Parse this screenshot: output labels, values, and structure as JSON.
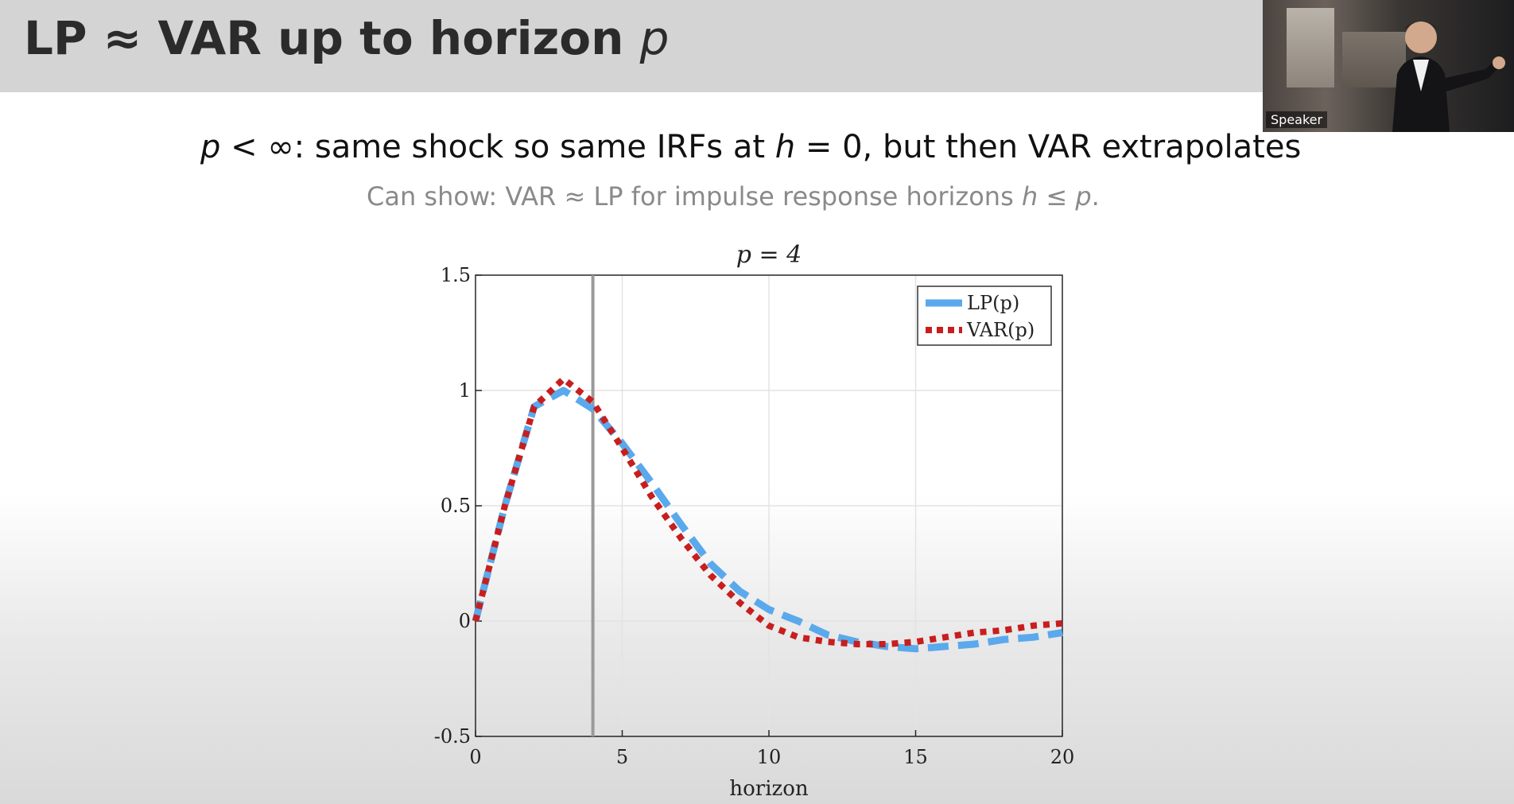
{
  "slide": {
    "title_main": "LP ≈ VAR up to horizon ",
    "title_var": "p",
    "subtitle": {
      "p": "p",
      "lt_inf": " < ∞: same shock so same IRFs at ",
      "h": "h",
      "rest": " = 0, but then VAR extrapolates"
    },
    "note": {
      "start": "Can show: VAR ≈ LP for impulse response horizons ",
      "h": "h",
      "le": " ≤ ",
      "p": "p",
      "end": "."
    }
  },
  "video": {
    "speaker_label": "Speaker"
  },
  "chart_data": {
    "type": "line",
    "title": "p = 4",
    "xlabel": "horizon",
    "ylabel": "",
    "xlim": [
      0,
      20
    ],
    "ylim": [
      -0.5,
      1.5
    ],
    "xticks": [
      0,
      5,
      10,
      15,
      20
    ],
    "yticks": [
      -0.5,
      0,
      0.5,
      1,
      1.5
    ],
    "xtick_labels": [
      "0",
      "5",
      "10",
      "15",
      "20"
    ],
    "ytick_labels": [
      "-0.5",
      "0",
      "0.5",
      "1",
      "1.5"
    ],
    "grid": true,
    "legend_position": "top-right",
    "vertical_line_x": 4,
    "series": [
      {
        "name": "LP(p)",
        "style": "dashed",
        "color": "#5aa9ec",
        "x": [
          0,
          1,
          2,
          3,
          4,
          5,
          6,
          7,
          8,
          9,
          10,
          11,
          12,
          13,
          14,
          15,
          16,
          17,
          18,
          19,
          20
        ],
        "values": [
          0.0,
          0.5,
          0.93,
          1.0,
          0.92,
          0.77,
          0.6,
          0.42,
          0.25,
          0.13,
          0.05,
          0.0,
          -0.06,
          -0.09,
          -0.11,
          -0.12,
          -0.11,
          -0.1,
          -0.08,
          -0.07,
          -0.05
        ]
      },
      {
        "name": "VAR(p)",
        "style": "dotted",
        "color": "#c81e1e",
        "x": [
          0,
          1,
          2,
          3,
          4,
          5,
          6,
          7,
          8,
          9,
          10,
          11,
          12,
          13,
          14,
          15,
          16,
          17,
          18,
          19,
          20
        ],
        "values": [
          0.0,
          0.5,
          0.93,
          1.05,
          0.95,
          0.75,
          0.54,
          0.36,
          0.2,
          0.08,
          -0.02,
          -0.07,
          -0.09,
          -0.1,
          -0.1,
          -0.09,
          -0.07,
          -0.05,
          -0.04,
          -0.02,
          -0.01
        ]
      }
    ]
  }
}
